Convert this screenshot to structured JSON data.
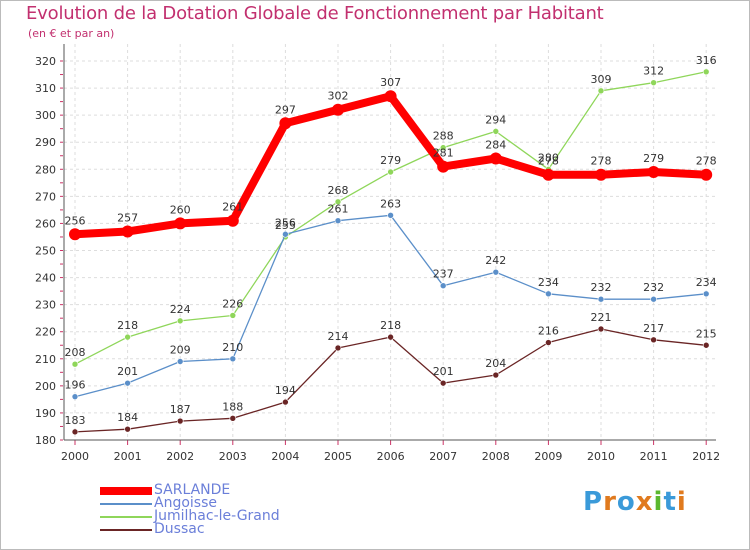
{
  "chart_data": {
    "type": "line",
    "title": "Evolution de la Dotation Globale de Fonctionnement par Habitant",
    "subtitle": "(en € et par an)",
    "xlabel": "",
    "ylabel": "",
    "categories": [
      "2000",
      "2001",
      "2002",
      "2003",
      "2004",
      "2005",
      "2006",
      "2007",
      "2008",
      "2009",
      "2010",
      "2011",
      "2012"
    ],
    "ylim": [
      180,
      320
    ],
    "yticks": [
      180,
      190,
      200,
      210,
      220,
      230,
      240,
      250,
      260,
      270,
      280,
      290,
      300,
      310,
      320
    ],
    "grid": true,
    "legend_position": "bottom-left",
    "series": [
      {
        "name": "SARLANDE",
        "color": "#ff0000",
        "values": [
          256,
          257,
          260,
          261,
          297,
          302,
          307,
          281,
          284,
          278,
          278,
          279,
          278
        ],
        "label_values": [
          "256",
          "257",
          "260",
          "261",
          "297",
          "302",
          "307",
          "281",
          "284",
          "278",
          "278",
          "279",
          "278"
        ]
      },
      {
        "name": "Angoisse",
        "color": "#5b8fc9",
        "values": [
          196,
          201,
          209,
          210,
          256,
          261,
          263,
          237,
          242,
          234,
          232,
          232,
          234
        ],
        "label_values": [
          "196",
          "201",
          "209",
          "210",
          "256",
          "261",
          "263",
          "237",
          "242",
          "234",
          "232",
          "232",
          "234"
        ]
      },
      {
        "name": "Jumilhac-le-Grand",
        "color": "#8fd65a",
        "values": [
          208,
          218,
          224,
          226,
          255,
          268,
          279,
          288,
          294,
          280,
          309,
          312,
          316
        ],
        "label_values": [
          "208",
          "218",
          "224",
          "226",
          "255",
          "268",
          "279",
          "288",
          "294",
          "280",
          "309",
          "312",
          "316"
        ]
      },
      {
        "name": "Dussac",
        "color": "#6a2525",
        "values": [
          183,
          184,
          187,
          188,
          194,
          214,
          218,
          201,
          204,
          216,
          221,
          217,
          215
        ],
        "label_values": [
          "183",
          "184",
          "187",
          "188",
          "194",
          "214",
          "218",
          "201",
          "204",
          "216",
          "221",
          "217",
          "215"
        ]
      }
    ]
  },
  "logo": {
    "letters": [
      "P",
      "r",
      "o",
      "x",
      "i",
      "t",
      "i"
    ],
    "colors": [
      "#3a9ad9",
      "#e07a1e",
      "#3a9ad9",
      "#e07a1e",
      "#5cb82e",
      "#3a9ad9",
      "#e07a1e"
    ]
  }
}
